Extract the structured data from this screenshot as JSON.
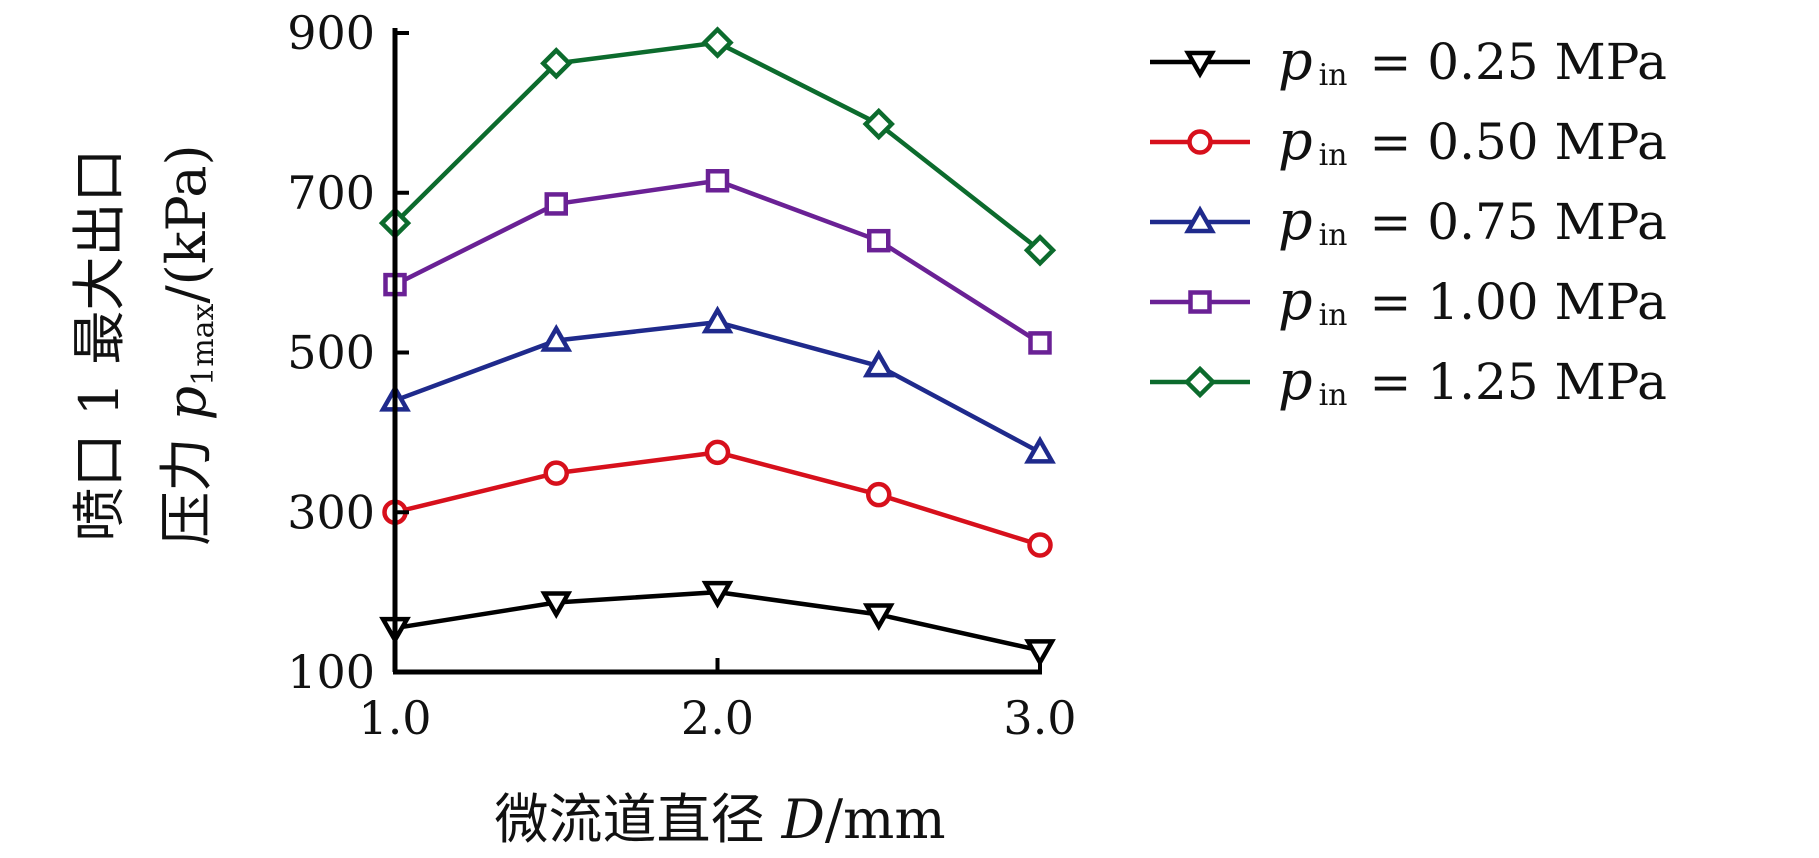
{
  "chart_data": {
    "type": "line",
    "title": "",
    "x": [
      1.0,
      1.5,
      2.0,
      2.5,
      3.0
    ],
    "xlim": [
      1.0,
      3.0
    ],
    "ylim": [
      100,
      900
    ],
    "x_ticks": [
      "1.0",
      "2.0",
      "3.0"
    ],
    "y_ticks": [
      "100",
      "300",
      "500",
      "700",
      "900"
    ],
    "xlabel": "微流道直径 D/mm",
    "xlabel_prefix": "微流道直径 ",
    "xlabel_var": "D",
    "xlabel_unit": "/mm",
    "ylabel": [
      "喷口 1 最大出口",
      "压力 p1max/(kPa)"
    ],
    "ylabel_line1": "喷口 1 最大出口",
    "ylabel_line2_prefix": "压力 ",
    "ylabel_var": "p",
    "ylabel_sub": "1max",
    "ylabel_unit": "/(kPa)",
    "legend_position": "right",
    "series": [
      {
        "name": "p in = 0.25 MPa",
        "var": "p",
        "sub": "in",
        "eq": "= 0.25 MPa",
        "color": "#000000",
        "marker": "triangle-down",
        "values": [
          155,
          187,
          200,
          172,
          127
        ]
      },
      {
        "name": "p in = 0.50 MPa",
        "var": "p",
        "sub": "in",
        "eq": "= 0.50 MPa",
        "color": "#d7101c",
        "marker": "circle",
        "values": [
          300,
          349,
          375,
          322,
          259
        ]
      },
      {
        "name": "p in = 0.75 MPa",
        "var": "p",
        "sub": "in",
        "eq": "= 0.75 MPa",
        "color": "#1f2a8c",
        "marker": "triangle-up",
        "values": [
          440,
          515,
          538,
          483,
          375
        ]
      },
      {
        "name": "p in = 1.00 MPa",
        "var": "p",
        "sub": "in",
        "eq": "= 1.00 MPa",
        "color": "#6a2195",
        "marker": "square",
        "values": [
          585,
          686,
          715,
          640,
          512
        ]
      },
      {
        "name": "p in = 1.25 MPa",
        "var": "p",
        "sub": "in",
        "eq": "= 1.25 MPa",
        "color": "#0c6b2d",
        "marker": "diamond",
        "values": [
          662,
          862,
          888,
          786,
          628
        ]
      }
    ]
  }
}
